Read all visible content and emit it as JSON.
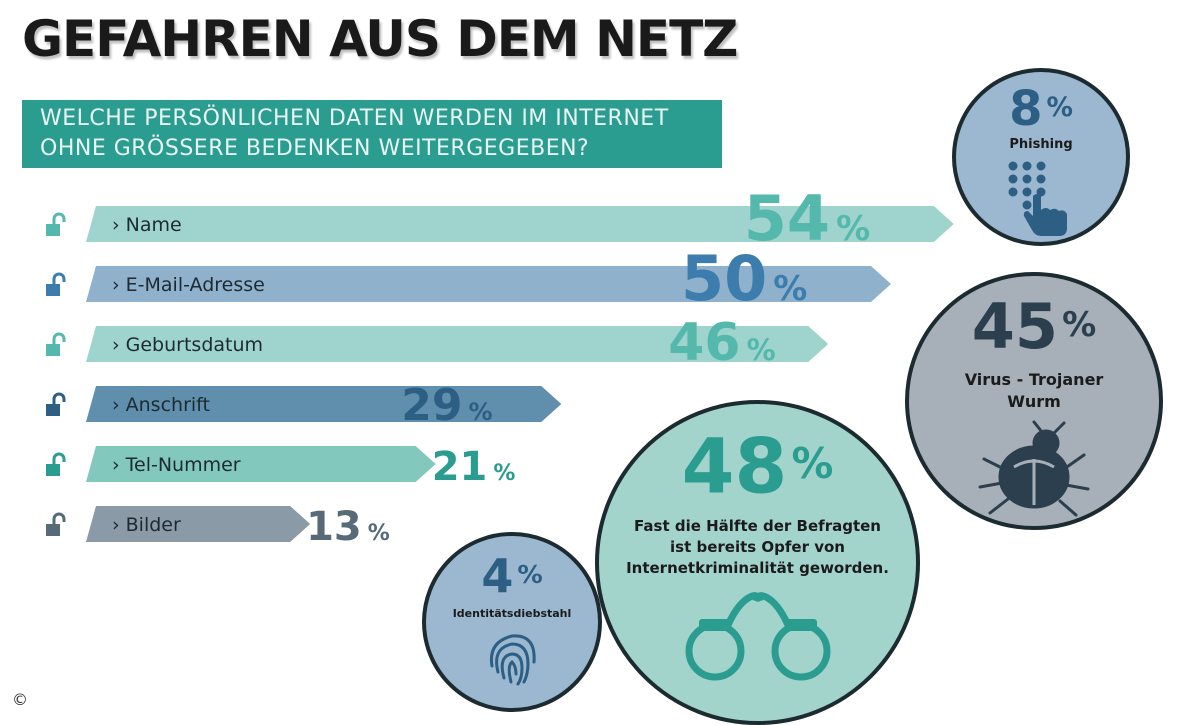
{
  "title": "GEFAHREN AUS DEM NETZ",
  "subtitle": {
    "line1": "WELCHE PERSÖNLICHEN DATEN WERDEN IM INTERNET",
    "line2": "OHNE GRÖSSERE BEDENKEN WEITERGEGEBEN?"
  },
  "chart_data": {
    "type": "bar",
    "title": "WELCHE PERSÖNLICHEN DATEN WERDEN IM INTERNET OHNE GRÖSSERE BEDENKEN WEITERGEGEBEN?",
    "categories": [
      "Name",
      "E-Mail-Adresse",
      "Geburtsdatum",
      "Anschrift",
      "Tel-Nummer",
      "Bilder"
    ],
    "values": [
      54,
      50,
      46,
      29,
      21,
      13
    ],
    "unit": "%",
    "colors": [
      "#9fd3cd",
      "#8fb1cc",
      "#9fd3cd",
      "#5f8fad",
      "#83c8bd",
      "#8a9aa6"
    ],
    "number_colors": [
      "#54b8ac",
      "#3d7dad",
      "#54b8ac",
      "#2c5f83",
      "#2b9d90",
      "#566a78"
    ]
  },
  "circles": [
    {
      "value": "8",
      "symbol": "%",
      "label": "Phishing",
      "icon": "hand-keypad-icon"
    },
    {
      "value": "45",
      "symbol": "%",
      "label_line1": "Virus - Trojaner",
      "label_line2": "Wurm",
      "icon": "bug-icon"
    },
    {
      "value": "48",
      "symbol": "%",
      "label_line1": "Fast die Hälfte der Befragten",
      "label_line2": "ist bereits Opfer von",
      "label_line3": "Internetkriminalität geworden.",
      "icon": "handcuffs-icon"
    },
    {
      "value": "4",
      "symbol": "%",
      "label": "Identitätsdiebstahl",
      "icon": "fingerprint-icon"
    }
  ],
  "colors": {
    "teal": "#2b9d90",
    "circle_blue": "#9cb8d0",
    "circle_grey": "#a7b0b8",
    "circle_mint": "#a3d4cc",
    "dark_blue": "#2c5f83"
  },
  "copyright_symbol": "©"
}
